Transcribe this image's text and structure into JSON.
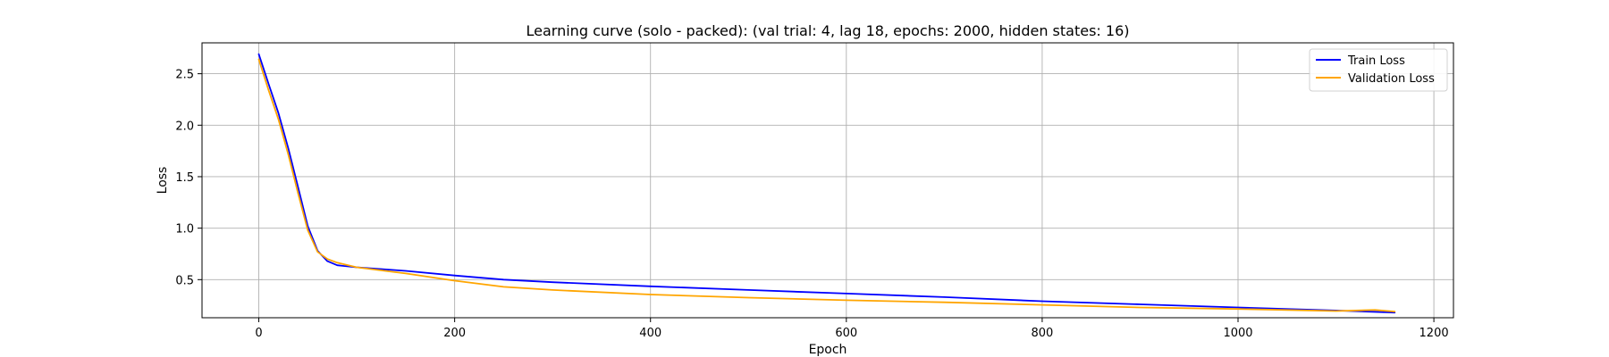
{
  "chart_data": {
    "type": "line",
    "title": "Learning curve (solo - packed): (val trial: 4, lag 18, epochs: 2000, hidden states: 16)",
    "xlabel": "Epoch",
    "ylabel": "Loss",
    "xlim": [
      -58,
      1220
    ],
    "ylim": [
      0.13,
      2.8
    ],
    "xticks": [
      0,
      200,
      400,
      600,
      800,
      1000,
      1200
    ],
    "yticks": [
      0.5,
      1.0,
      1.5,
      2.0,
      2.5
    ],
    "xtick_labels": [
      "0",
      "200",
      "400",
      "600",
      "800",
      "1000",
      "1200"
    ],
    "ytick_labels": [
      "0.5",
      "1.0",
      "1.5",
      "2.0",
      "2.5"
    ],
    "grid": true,
    "legend_position": "top-right",
    "series": [
      {
        "name": "Train Loss",
        "color": "#0000ff",
        "x": [
          0,
          10,
          20,
          30,
          40,
          50,
          60,
          70,
          80,
          100,
          150,
          200,
          250,
          300,
          400,
          500,
          600,
          700,
          800,
          900,
          1000,
          1100,
          1160
        ],
        "y": [
          2.69,
          2.4,
          2.12,
          1.78,
          1.4,
          1.02,
          0.78,
          0.68,
          0.64,
          0.62,
          0.585,
          0.54,
          0.5,
          0.475,
          0.435,
          0.4,
          0.365,
          0.33,
          0.29,
          0.26,
          0.23,
          0.2,
          0.18
        ]
      },
      {
        "name": "Validation Loss",
        "color": "#ffa500",
        "x": [
          0,
          10,
          20,
          30,
          40,
          50,
          60,
          70,
          80,
          100,
          150,
          200,
          250,
          300,
          400,
          500,
          600,
          700,
          800,
          900,
          1000,
          1100,
          1140,
          1160
        ],
        "y": [
          2.64,
          2.34,
          2.06,
          1.72,
          1.34,
          0.98,
          0.77,
          0.7,
          0.665,
          0.62,
          0.56,
          0.49,
          0.43,
          0.4,
          0.355,
          0.325,
          0.3,
          0.28,
          0.255,
          0.23,
          0.215,
          0.195,
          0.205,
          0.19
        ]
      }
    ]
  }
}
